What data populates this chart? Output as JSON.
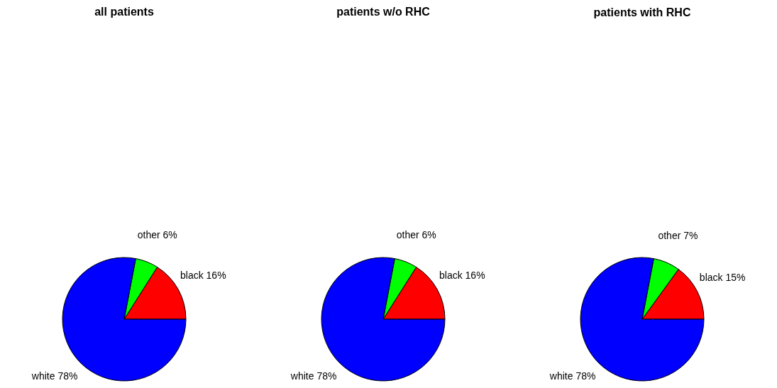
{
  "chart_data": [
    {
      "type": "pie",
      "title": "all patients",
      "categories": [
        "black",
        "other",
        "white"
      ],
      "values": [
        16,
        6,
        78
      ],
      "value_labels": [
        "16%",
        "6%",
        "78%"
      ],
      "colors": [
        "#ff0000",
        "#00ff00",
        "#0000ff"
      ],
      "legend": false
    },
    {
      "type": "pie",
      "title": "patients w/o RHC",
      "categories": [
        "black",
        "other",
        "white"
      ],
      "values": [
        16,
        6,
        78
      ],
      "value_labels": [
        "16%",
        "6%",
        "78%"
      ],
      "colors": [
        "#ff0000",
        "#00ff00",
        "#0000ff"
      ],
      "legend": false
    },
    {
      "type": "pie",
      "title": "patients with RHC",
      "categories": [
        "black",
        "other",
        "white"
      ],
      "values": [
        15,
        7,
        78
      ],
      "value_labels": [
        "15%",
        "7%",
        "78%"
      ],
      "colors": [
        "#ff0000",
        "#00ff00",
        "#0000ff"
      ],
      "legend": false
    }
  ]
}
